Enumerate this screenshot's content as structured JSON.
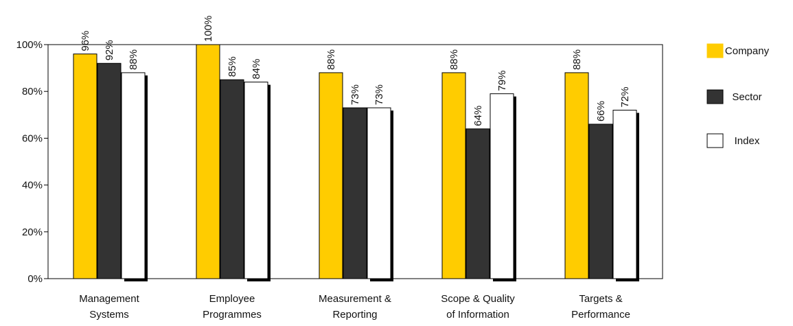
{
  "chart_data": {
    "type": "bar",
    "categories": [
      [
        "Management",
        "Systems"
      ],
      [
        "Employee",
        "Programmes"
      ],
      [
        "Measurement &",
        "Reporting"
      ],
      [
        "Scope & Quality",
        "of Information"
      ],
      [
        "Targets &",
        "Performance"
      ]
    ],
    "series": [
      {
        "name": "Company",
        "values": [
          96,
          100,
          88,
          88,
          88
        ],
        "labels": [
          "96%",
          "100%",
          "88%",
          "88%",
          "88%"
        ],
        "color": "#FFCC00"
      },
      {
        "name": "Sector",
        "values": [
          92,
          85,
          73,
          64,
          66
        ],
        "labels": [
          "92%",
          "85%",
          "73%",
          "64%",
          "66%"
        ],
        "color": "#333333"
      },
      {
        "name": "Index",
        "values": [
          88,
          84,
          73,
          79,
          72
        ],
        "labels": [
          "88%",
          "84%",
          "73%",
          "79%",
          "72%"
        ],
        "color": "#FFFFFF"
      }
    ],
    "yticks": [
      "0%",
      "20%",
      "40%",
      "60%",
      "80%",
      "100%"
    ],
    "ylim": [
      0,
      100
    ],
    "grid": false,
    "legend_position": "right"
  }
}
